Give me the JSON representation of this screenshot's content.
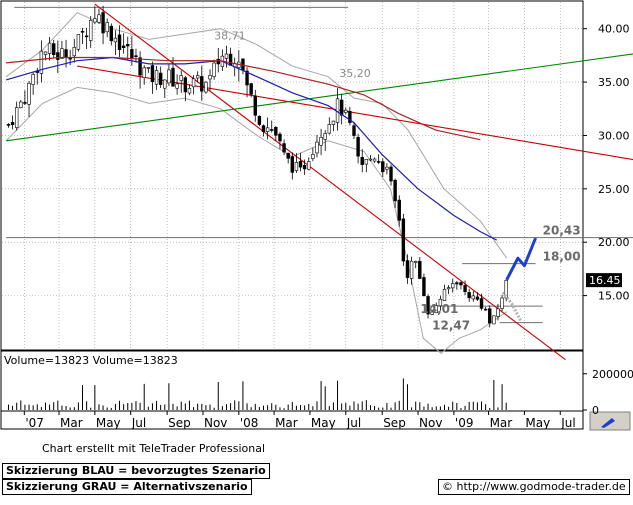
{
  "chart_data": {
    "type": "candlestick",
    "price_panel": {
      "ylim": [
        10.0,
        42.5
      ],
      "y_ticks": [
        "40.00",
        "35.00",
        "30.00",
        "25.00",
        "20.00",
        "15.00"
      ],
      "y_tick_values": [
        40,
        35,
        30,
        25,
        20,
        15
      ],
      "last_price_label": "16.45",
      "last_price": 16.45,
      "annotations": [
        {
          "text": "38,71",
          "value": 38.71,
          "x": "2007-11-20"
        },
        {
          "text": "35,20",
          "value": 35.2,
          "x": "2008-06-20"
        },
        {
          "text": "20,43",
          "value": 20.43,
          "x": "2009-06-01"
        },
        {
          "text": "18,00",
          "value": 18.0,
          "x": "2009-06-01"
        },
        {
          "text": "14,01",
          "value": 14.01,
          "x": "2008-11-05"
        },
        {
          "text": "12,47",
          "value": 12.47,
          "x": "2008-11-25"
        }
      ],
      "horizontal_lines": [
        {
          "value": 42.0,
          "x_start": "2006-12-15",
          "x_end": "2008-07-05",
          "color": "#707070"
        },
        {
          "value": 20.43,
          "x_start": "2006-12-01",
          "x_end": "2009-12-20",
          "color": "#707070"
        },
        {
          "value": 18.0,
          "x_start": "2009-01-15",
          "x_end": "2009-05-20",
          "color": "#707070"
        },
        {
          "value": 14.01,
          "x_start": "2008-11-20",
          "x_end": "2009-06-01",
          "color": "#707070"
        },
        {
          "value": 12.47,
          "x_start": "2009-03-20",
          "x_end": "2009-06-01",
          "color": "#707070"
        }
      ],
      "trend_lines": [
        {
          "color": "#cc0000",
          "points": [
            [
              "2007-05-01",
              42.3
            ],
            [
              "2009-07-10",
              9.0
            ]
          ]
        },
        {
          "color": "#cc0000",
          "points": [
            [
              "2007-04-01",
              36.5
            ],
            [
              "2009-12-20",
              27.3
            ]
          ]
        },
        {
          "color": "#008800",
          "points": [
            [
              "2006-12-01",
              29.5
            ],
            [
              "2009-12-20",
              38.0
            ]
          ]
        }
      ],
      "moving_averages": [
        {
          "name": "MA",
          "color": "#1c1cb4",
          "points": [
            [
              "2006-12-01",
              35.2
            ],
            [
              "2007-02-01",
              36.2
            ],
            [
              "2007-04-01",
              37.0
            ],
            [
              "2007-06-01",
              37.3
            ],
            [
              "2007-08-01",
              36.7
            ],
            [
              "2007-10-01",
              36.7
            ],
            [
              "2007-12-01",
              37.0
            ],
            [
              "2008-02-01",
              35.5
            ],
            [
              "2008-04-01",
              34.0
            ],
            [
              "2008-06-01",
              32.8
            ],
            [
              "2008-07-15",
              31.2
            ],
            [
              "2008-09-01",
              28.2
            ],
            [
              "2008-11-01",
              25.0
            ],
            [
              "2009-01-01",
              22.5
            ],
            [
              "2009-02-15",
              21.0
            ],
            [
              "2009-03-15",
              20.2
            ]
          ]
        },
        {
          "name": "MA2",
          "color": "#aa2222",
          "points": [
            [
              "2006-12-01",
              36.8
            ],
            [
              "2007-03-01",
              37.3
            ],
            [
              "2007-06-01",
              37.3
            ],
            [
              "2007-09-01",
              37.0
            ],
            [
              "2007-12-01",
              37.0
            ],
            [
              "2008-03-01",
              36.0
            ],
            [
              "2008-06-01",
              34.8
            ],
            [
              "2008-08-01",
              33.8
            ],
            [
              "2008-10-01",
              32.0
            ],
            [
              "2008-12-01",
              30.5
            ],
            [
              "2009-02-15",
              29.6
            ]
          ]
        }
      ],
      "bollinger_upper": [
        [
          "2006-12-01",
          35.5
        ],
        [
          "2007-02-01",
          38.0
        ],
        [
          "2007-04-01",
          41.5
        ],
        [
          "2007-06-01",
          40.0
        ],
        [
          "2007-08-01",
          39.0
        ],
        [
          "2007-10-01",
          39.5
        ],
        [
          "2007-12-01",
          40.0
        ],
        [
          "2008-02-01",
          38.5
        ],
        [
          "2008-04-01",
          36.5
        ],
        [
          "2008-06-01",
          35.5
        ],
        [
          "2008-07-15",
          33.5
        ],
        [
          "2008-09-01",
          33.0
        ],
        [
          "2008-10-15",
          30.5
        ],
        [
          "2008-12-15",
          25.0
        ],
        [
          "2009-02-15",
          22.0
        ],
        [
          "2009-04-01",
          18.5
        ]
      ],
      "bollinger_lower": [
        [
          "2006-12-01",
          29.5
        ],
        [
          "2007-02-01",
          33.0
        ],
        [
          "2007-04-01",
          34.5
        ],
        [
          "2007-06-01",
          34.0
        ],
        [
          "2007-08-01",
          33.0
        ],
        [
          "2007-10-01",
          33.5
        ],
        [
          "2007-12-01",
          32.5
        ],
        [
          "2008-02-01",
          30.0
        ],
        [
          "2008-04-01",
          28.0
        ],
        [
          "2008-06-01",
          29.5
        ],
        [
          "2008-08-01",
          28.5
        ],
        [
          "2008-09-15",
          25.0
        ],
        [
          "2008-10-15",
          18.0
        ],
        [
          "2008-11-10",
          11.0
        ],
        [
          "2008-12-10",
          9.6
        ],
        [
          "2009-01-10",
          11.0
        ],
        [
          "2009-02-15",
          11.8
        ],
        [
          "2009-04-01",
          13.5
        ]
      ],
      "scenario_blue": [
        [
          "2009-04-01",
          16.5
        ],
        [
          "2009-04-20",
          18.5
        ],
        [
          "2009-05-01",
          17.8
        ],
        [
          "2009-05-20",
          20.4
        ]
      ],
      "scenario_gray": [
        [
          "2009-03-25",
          15.3
        ],
        [
          "2009-04-10",
          14.2
        ],
        [
          "2009-04-25",
          12.6
        ]
      ],
      "anchors": [
        [
          "2006-12-05",
          31.0
        ],
        [
          "2007-01-05",
          34.0
        ],
        [
          "2007-02-01",
          38.0
        ],
        [
          "2007-03-01",
          37.5
        ],
        [
          "2007-04-01",
          38.5
        ],
        [
          "2007-05-01",
          41.5
        ],
        [
          "2007-06-01",
          39.5
        ],
        [
          "2007-07-01",
          37.5
        ],
        [
          "2007-08-01",
          35.5
        ],
        [
          "2007-09-01",
          35.5
        ],
        [
          "2007-10-01",
          34.8
        ],
        [
          "2007-11-10",
          34.8
        ],
        [
          "2007-12-01",
          37.5
        ],
        [
          "2008-01-01",
          37.5
        ],
        [
          "2008-01-15",
          34.5
        ],
        [
          "2008-02-10",
          31.0
        ],
        [
          "2008-03-01",
          30.5
        ],
        [
          "2008-03-20",
          27.8
        ],
        [
          "2008-04-15",
          26.5
        ],
        [
          "2008-05-15",
          30.0
        ],
        [
          "2008-06-10",
          32.0
        ],
        [
          "2008-06-20",
          33.0
        ],
        [
          "2008-07-10",
          30.5
        ],
        [
          "2008-07-25",
          27.0
        ],
        [
          "2008-08-20",
          28.2
        ],
        [
          "2008-09-10",
          26.5
        ],
        [
          "2008-10-01",
          22.0
        ],
        [
          "2008-10-10",
          16.5
        ],
        [
          "2008-10-25",
          18.5
        ],
        [
          "2008-11-10",
          15.5
        ],
        [
          "2008-11-21",
          12.8
        ],
        [
          "2008-12-05",
          14.5
        ],
        [
          "2008-12-20",
          15.5
        ],
        [
          "2009-01-05",
          16.5
        ],
        [
          "2009-01-20",
          15.3
        ],
        [
          "2009-02-10",
          14.6
        ],
        [
          "2009-02-25",
          13.5
        ],
        [
          "2009-03-05",
          12.1
        ],
        [
          "2009-03-20",
          14.2
        ],
        [
          "2009-04-01",
          16.4
        ]
      ]
    },
    "volume_panel": {
      "label": "Volume=13823 Volume=13823",
      "ylim": [
        0,
        320000
      ],
      "y_ticks": [
        "200000",
        "0"
      ],
      "y_tick_values": [
        200000,
        0
      ]
    },
    "x_axis": {
      "start": "2006-11-24",
      "end": "2009-08-07",
      "ticks": [
        {
          "label": "'07",
          "date": "2007-01-01"
        },
        {
          "label": "Mar",
          "date": "2007-03-01"
        },
        {
          "label": "May",
          "date": "2007-05-01"
        },
        {
          "label": "Jul",
          "date": "2007-07-01"
        },
        {
          "label": "Sep",
          "date": "2007-09-01"
        },
        {
          "label": "Nov",
          "date": "2007-11-01"
        },
        {
          "label": "'08",
          "date": "2008-01-01"
        },
        {
          "label": "Mar",
          "date": "2008-03-01"
        },
        {
          "label": "May",
          "date": "2008-05-01"
        },
        {
          "label": "Jul",
          "date": "2008-07-01"
        },
        {
          "label": "Sep",
          "date": "2008-09-01"
        },
        {
          "label": "Nov",
          "date": "2008-11-01"
        },
        {
          "label": "'09",
          "date": "2009-01-01"
        },
        {
          "label": "Mar",
          "date": "2009-03-01"
        },
        {
          "label": "May",
          "date": "2009-05-01"
        },
        {
          "label": "Jul",
          "date": "2009-07-01"
        }
      ]
    }
  },
  "footer": {
    "credit": "Chart erstellt mit TeleTrader Professional",
    "legend_blue": "Skizzierung BLAU = bevorzugtes Szenario",
    "legend_gray": "Skizzierung GRAU = Alternativszenario",
    "website": "© http://www.godmode-trader.de"
  },
  "colors": {
    "trend_red": "#cc0000",
    "trend_green": "#008800",
    "ma_blue": "#1c1cb4",
    "scenario_blue": "#1a3fd0",
    "scenario_gray": "#b4b4b4",
    "bollinger": "#a6a6a6",
    "grid": "#9a9a9a"
  }
}
